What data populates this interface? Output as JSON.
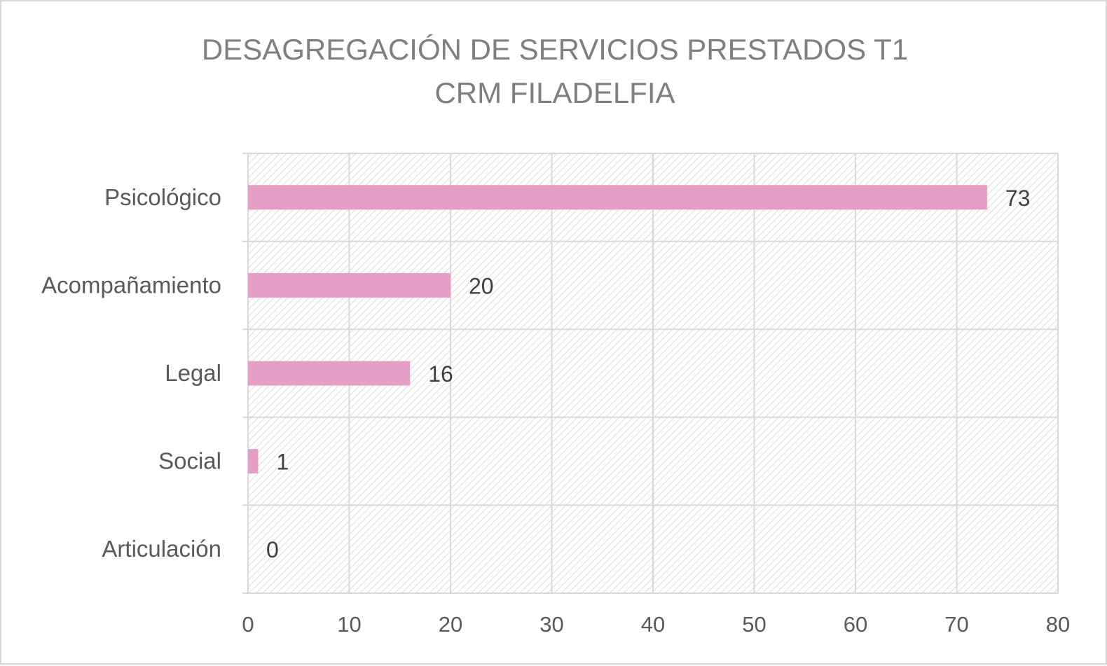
{
  "chart_data": {
    "type": "bar",
    "orientation": "horizontal",
    "title_lines": [
      "DESAGREGACIÓN DE SERVICIOS PRESTADOS T1",
      "CRM FILADELFIA"
    ],
    "categories": [
      "Psicológico",
      "Acompañamiento",
      "Legal",
      "Social",
      "Articulación"
    ],
    "values": [
      73,
      20,
      16,
      1,
      0
    ],
    "data_labels": [
      "73",
      "20",
      "16",
      "1",
      "0"
    ],
    "x_ticks": [
      0,
      10,
      20,
      30,
      40,
      50,
      60,
      70,
      80
    ],
    "x_tick_labels": [
      "0",
      "10",
      "20",
      "30",
      "40",
      "50",
      "60",
      "70",
      "80"
    ],
    "xlim": [
      0,
      80
    ],
    "grid": true,
    "legend": "none",
    "colors": {
      "bar": "#e59ec5",
      "grid": "#d9d9d9",
      "hatch": "#d4d4d4",
      "title": "#7f7f7f",
      "text": "#595959"
    }
  }
}
